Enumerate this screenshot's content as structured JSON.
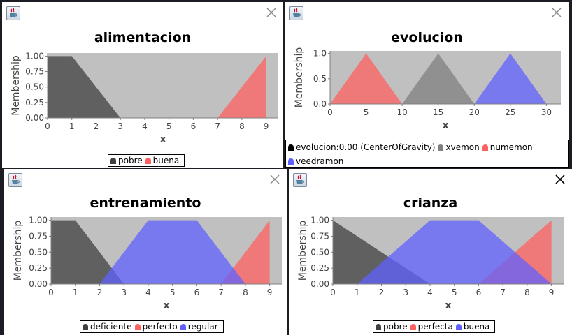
{
  "windows": [
    {
      "id": "alimentacion",
      "close_dark": false,
      "chart_data": {
        "type": "area",
        "title": "alimentacion",
        "xlabel": "x",
        "ylabel": "Membership",
        "xlim": [
          0,
          9.5
        ],
        "ylim": [
          0,
          1.05
        ],
        "xticks": [
          0,
          1,
          2,
          3,
          4,
          5,
          6,
          7,
          8,
          9
        ],
        "yticks": [
          "0.00",
          "0.25",
          "0.50",
          "0.75",
          "1.00"
        ],
        "background": "#c0c0c0",
        "series": [
          {
            "name": "pobre",
            "color": "#404040",
            "points": [
              [
                0,
                1
              ],
              [
                1,
                1
              ],
              [
                3,
                0
              ]
            ]
          },
          {
            "name": "buena",
            "color": "#ff6060",
            "points": [
              [
                7,
                0
              ],
              [
                9,
                1
              ],
              [
                9,
                0
              ]
            ]
          }
        ]
      },
      "legend": {
        "lines": [
          [
            "pobre",
            "buena"
          ]
        ]
      }
    },
    {
      "id": "evolucion",
      "close_dark": false,
      "chart_data": {
        "type": "area",
        "title": "evolucion",
        "xlabel": "x",
        "ylabel": "Membership",
        "xlim": [
          0,
          32
        ],
        "ylim": [
          0,
          1.05
        ],
        "xticks": [
          0,
          5,
          10,
          15,
          20,
          25,
          30
        ],
        "yticks": [
          "0.0",
          "0.5",
          "1.0"
        ],
        "background": "#c0c0c0",
        "series": [
          {
            "name": "xvemon",
            "color": "#808080",
            "points": [
              [
                10,
                0
              ],
              [
                15,
                1
              ],
              [
                20,
                0
              ]
            ]
          },
          {
            "name": "numemon",
            "color": "#ff6060",
            "points": [
              [
                0,
                0
              ],
              [
                5,
                1
              ],
              [
                10,
                0
              ]
            ]
          },
          {
            "name": "veedramon",
            "color": "#6060ff",
            "points": [
              [
                20,
                0
              ],
              [
                25,
                1
              ],
              [
                30,
                0
              ]
            ]
          }
        ]
      },
      "legend": {
        "lines": [
          [
            "evolucion:0.00 (CenterOfGravity)",
            "xvemon",
            "numemon"
          ],
          [
            "veedramon"
          ]
        ]
      }
    },
    {
      "id": "entrenamiento",
      "close_dark": false,
      "chart_data": {
        "type": "area",
        "title": "entrenamiento",
        "xlabel": "x",
        "ylabel": "Membership",
        "xlim": [
          0,
          9.5
        ],
        "ylim": [
          0,
          1.05
        ],
        "xticks": [
          0,
          1,
          2,
          3,
          4,
          5,
          6,
          7,
          8,
          9
        ],
        "yticks": [
          "0.00",
          "0.25",
          "0.50",
          "0.75",
          "1.00"
        ],
        "background": "#c0c0c0",
        "series": [
          {
            "name": "deficiente",
            "color": "#404040",
            "points": [
              [
                0,
                1
              ],
              [
                1,
                1
              ],
              [
                3,
                0
              ]
            ]
          },
          {
            "name": "perfecto",
            "color": "#ff6060",
            "points": [
              [
                7,
                0
              ],
              [
                9,
                1
              ],
              [
                9,
                0
              ]
            ]
          },
          {
            "name": "regular",
            "color": "#6060ff",
            "points": [
              [
                2,
                0
              ],
              [
                4,
                1
              ],
              [
                6,
                1
              ],
              [
                8,
                0
              ]
            ]
          }
        ]
      },
      "legend": {
        "lines": [
          [
            "deficiente",
            "perfecto",
            "regular"
          ]
        ]
      }
    },
    {
      "id": "crianza",
      "close_dark": true,
      "chart_data": {
        "type": "area",
        "title": "crianza",
        "xlabel": "x",
        "ylabel": "Membership",
        "xlim": [
          0,
          9.5
        ],
        "ylim": [
          0,
          1.05
        ],
        "xticks": [
          0,
          1,
          2,
          3,
          4,
          5,
          6,
          7,
          8,
          9
        ],
        "yticks": [
          "0.00",
          "0.25",
          "0.50",
          "0.75",
          "1.00"
        ],
        "background": "#c0c0c0",
        "series": [
          {
            "name": "pobre",
            "color": "#404040",
            "points": [
              [
                0,
                1
              ],
              [
                4,
                0
              ],
              [
                0,
                0
              ]
            ]
          },
          {
            "name": "perfecta",
            "color": "#ff6060",
            "points": [
              [
                6,
                0
              ],
              [
                9,
                1
              ],
              [
                9,
                0
              ]
            ]
          },
          {
            "name": "buena",
            "color": "#6060ff",
            "points": [
              [
                1,
                0
              ],
              [
                4,
                1
              ],
              [
                6,
                1
              ],
              [
                9,
                0
              ]
            ]
          }
        ]
      },
      "legend": {
        "lines": [
          [
            "pobre",
            "perfecta",
            "buena"
          ]
        ]
      }
    }
  ]
}
